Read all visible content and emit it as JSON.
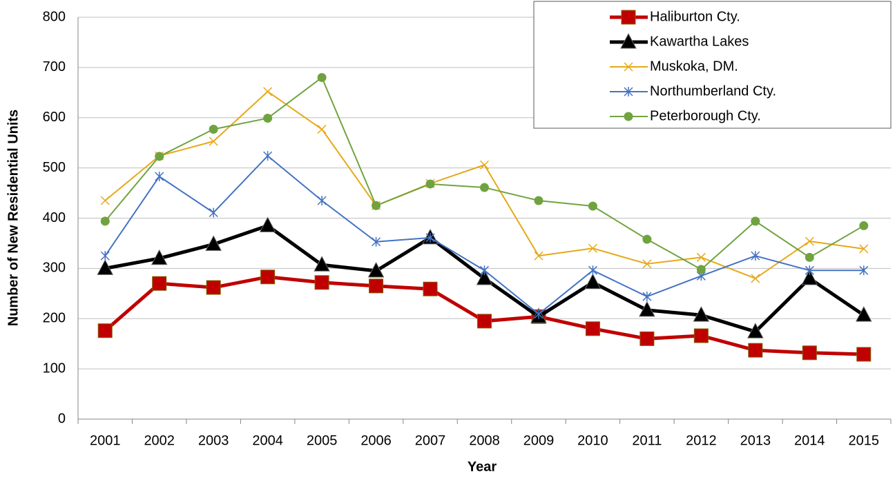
{
  "chart_data": {
    "type": "line",
    "x_label": "Year",
    "y_label": "Number of New Residential Units",
    "categories": [
      "2001",
      "2002",
      "2003",
      "2004",
      "2005",
      "2006",
      "2007",
      "2008",
      "2009",
      "2010",
      "2011",
      "2012",
      "2013",
      "2014",
      "2015"
    ],
    "series": [
      {
        "name": "Haliburton Cty.",
        "color": "#c00000",
        "marker": "square",
        "values": [
          176,
          270,
          262,
          283,
          272,
          265,
          259,
          195,
          204,
          180,
          160,
          166,
          137,
          132,
          129
        ]
      },
      {
        "name": "Kawartha Lakes",
        "color": "#000000",
        "marker": "triangle",
        "values": [
          300,
          320,
          348,
          385,
          307,
          295,
          361,
          280,
          204,
          272,
          217,
          207,
          174,
          280,
          207
        ]
      },
      {
        "name": "Muskoka, DM.",
        "color": "#e6a817",
        "marker": "x",
        "values": [
          435,
          524,
          553,
          652,
          577,
          425,
          469,
          506,
          325,
          340,
          309,
          322,
          280,
          354,
          339
        ]
      },
      {
        "name": "Northumberland Cty.",
        "color": "#4472c4",
        "marker": "asterisk",
        "values": [
          325,
          483,
          411,
          524,
          435,
          353,
          361,
          296,
          209,
          296,
          244,
          285,
          325,
          296,
          296
        ]
      },
      {
        "name": "Peterborough Cty.",
        "color": "#70a33f",
        "marker": "circle",
        "values": [
          394,
          523,
          577,
          599,
          680,
          425,
          468,
          461,
          435,
          424,
          358,
          298,
          394,
          322,
          385
        ]
      }
    ],
    "ylim": [
      0,
      800
    ],
    "yticks": [
      0,
      100,
      200,
      300,
      400,
      500,
      600,
      700,
      800
    ],
    "grid": true,
    "legend": "upper right"
  }
}
